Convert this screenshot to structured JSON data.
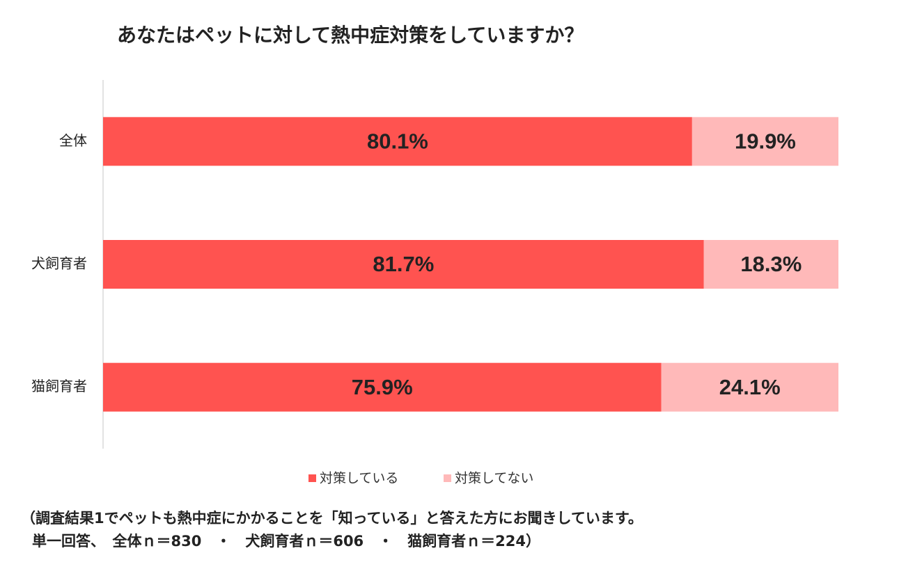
{
  "chart_data": {
    "type": "stacked_barh",
    "title": "あなたはペットに対して熱中症対策をしていますか？",
    "categories": [
      "全体",
      "犬飼育者",
      "猫飼育者"
    ],
    "series": [
      {
        "name": "対策している",
        "color": "#ff5350",
        "values": [
          80.1,
          81.7,
          75.9
        ],
        "value_labels": [
          "80.1%",
          "81.7%",
          "75.9%"
        ]
      },
      {
        "name": "対策してない",
        "color": "#ffb9b9",
        "values": [
          19.9,
          18.3,
          24.1
        ],
        "value_labels": [
          "19.9%",
          "18.3%",
          "24.1%"
        ]
      }
    ],
    "xlim": [
      0,
      100
    ],
    "legend": "bottom",
    "notes": [
      "（調査結果1でペットも熱中症にかかることを「知っている」と答えた方にお聞きしています。",
      "単一回答、　全体ｎ＝830　・　犬飼育者ｎ＝606　・　猫飼育者ｎ＝224）"
    ]
  }
}
